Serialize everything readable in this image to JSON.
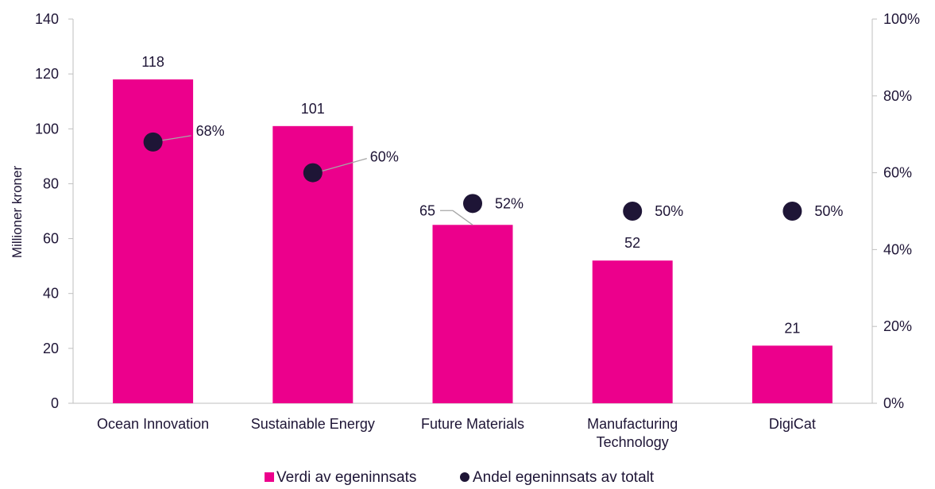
{
  "chart_data": {
    "type": "bar",
    "categories": [
      [
        "Ocean Innovation"
      ],
      [
        "Sustainable Energy"
      ],
      [
        "Future Materials"
      ],
      [
        "Manufacturing",
        "Technology"
      ],
      [
        "DigiCat"
      ]
    ],
    "series": [
      {
        "name": "Verdi av egeninnsats",
        "kind": "bar",
        "axis": "left",
        "values": [
          118,
          101,
          65,
          52,
          21
        ],
        "labels": [
          "118",
          "101",
          "65",
          "52",
          "21"
        ],
        "color": "#ec008c"
      },
      {
        "name": "Andel egeninnsats av totalt",
        "kind": "scatter",
        "axis": "right",
        "values": [
          68,
          60,
          52,
          50,
          50
        ],
        "labels": [
          "68%",
          "60%",
          "52%",
          "50%",
          "50%"
        ],
        "color": "#1e1536"
      }
    ],
    "ylabel": "Millioner kroner",
    "ylim": [
      0,
      140
    ],
    "yticks": [
      "0",
      "20",
      "40",
      "60",
      "80",
      "100",
      "120",
      "140"
    ],
    "y2lim": [
      0,
      100
    ],
    "y2ticks": [
      "0%",
      "20%",
      "40%",
      "60%",
      "80%",
      "100%"
    ],
    "grid": false,
    "legend_position": "bottom"
  }
}
